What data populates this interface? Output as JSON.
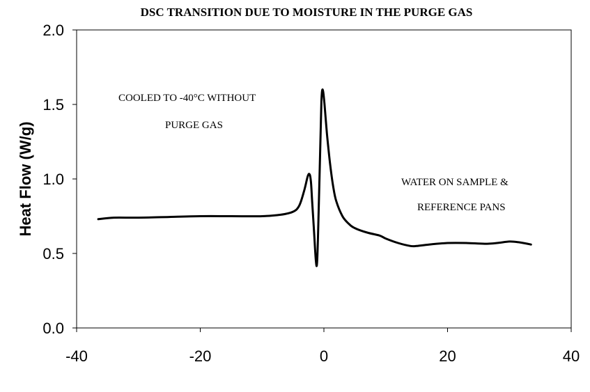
{
  "chart_data": {
    "type": "line",
    "title": "DSC TRANSITION DUE TO MOISTURE IN THE PURGE GAS",
    "xlabel": "",
    "ylabel": "Heat Flow (W/g)",
    "xlim": [
      -40,
      40
    ],
    "ylim": [
      0.0,
      2.0
    ],
    "x_ticks": [
      "-40",
      "-20",
      "0",
      "20",
      "40"
    ],
    "y_ticks": [
      "0.0",
      "0.5",
      "1.0",
      "1.5",
      "2.0"
    ],
    "grid": false,
    "legend": "none",
    "annotations": [
      "COOLED TO -40°C WITHOUT",
      "PURGE GAS",
      "WATER ON SAMPLE &",
      "REFERENCE PANS"
    ],
    "series": [
      {
        "color": "#000000",
        "x": [
          -36.5,
          -34,
          -30,
          -25,
          -20,
          -15,
          -10,
          -7,
          -5,
          -4,
          -3.2,
          -2.6,
          -2.3,
          -2.1,
          -1.9,
          -1.6,
          -1.3,
          -1.1,
          -0.9,
          -0.6,
          -0.4,
          -0.2,
          0.1,
          0.5,
          1,
          1.5,
          2,
          3,
          4,
          5,
          7,
          9,
          10,
          12,
          14,
          15,
          17,
          20,
          23,
          26,
          28,
          30,
          31.5,
          33.5
        ],
        "y": [
          0.73,
          0.74,
          0.74,
          0.745,
          0.75,
          0.75,
          0.75,
          0.76,
          0.78,
          0.82,
          0.92,
          1.02,
          1.03,
          0.98,
          0.85,
          0.65,
          0.45,
          0.44,
          0.7,
          1.2,
          1.52,
          1.6,
          1.5,
          1.3,
          1.1,
          0.95,
          0.85,
          0.75,
          0.7,
          0.67,
          0.64,
          0.62,
          0.6,
          0.57,
          0.55,
          0.55,
          0.56,
          0.57,
          0.57,
          0.565,
          0.57,
          0.58,
          0.575,
          0.56
        ]
      }
    ]
  }
}
